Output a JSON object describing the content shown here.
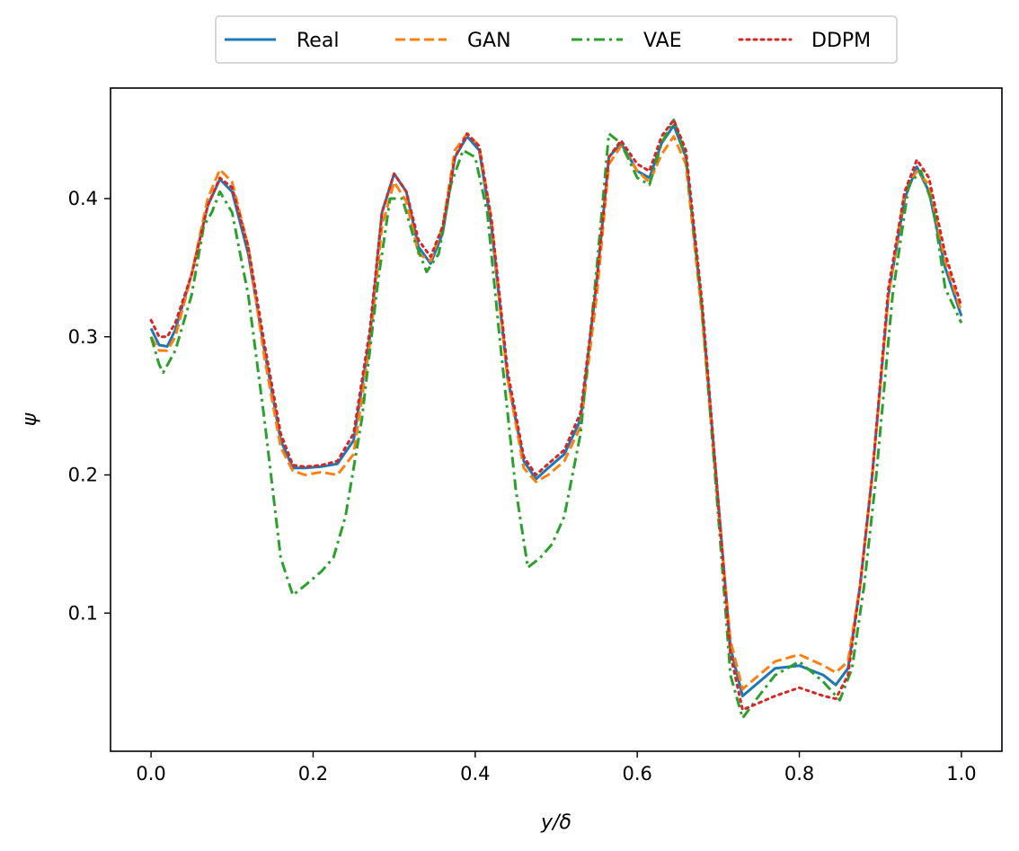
{
  "chart_data": {
    "type": "line",
    "xlabel": "y/δ",
    "ylabel": "ψ",
    "xlim": [
      -0.05,
      1.05
    ],
    "ylim": [
      0.0,
      0.48
    ],
    "xticks": [
      {
        "value": 0.0,
        "label": "0.0"
      },
      {
        "value": 0.2,
        "label": "0.2"
      },
      {
        "value": 0.4,
        "label": "0.4"
      },
      {
        "value": 0.6,
        "label": "0.6"
      },
      {
        "value": 0.8,
        "label": "0.8"
      },
      {
        "value": 1.0,
        "label": "1.0"
      }
    ],
    "yticks": [
      {
        "value": 0.1,
        "label": "0.1"
      },
      {
        "value": 0.2,
        "label": "0.2"
      },
      {
        "value": 0.3,
        "label": "0.3"
      },
      {
        "value": 0.4,
        "label": "0.4"
      }
    ],
    "legend_position": "top-center-outside",
    "grid": false,
    "series": [
      {
        "name": "Real",
        "color": "#1f77b4",
        "dash": "solid",
        "points": [
          [
            0.0,
            0.306
          ],
          [
            0.01,
            0.294
          ],
          [
            0.02,
            0.293
          ],
          [
            0.03,
            0.305
          ],
          [
            0.05,
            0.345
          ],
          [
            0.07,
            0.395
          ],
          [
            0.085,
            0.414
          ],
          [
            0.1,
            0.405
          ],
          [
            0.12,
            0.36
          ],
          [
            0.14,
            0.29
          ],
          [
            0.16,
            0.225
          ],
          [
            0.175,
            0.205
          ],
          [
            0.19,
            0.205
          ],
          [
            0.21,
            0.206
          ],
          [
            0.23,
            0.208
          ],
          [
            0.25,
            0.225
          ],
          [
            0.27,
            0.3
          ],
          [
            0.285,
            0.39
          ],
          [
            0.3,
            0.418
          ],
          [
            0.315,
            0.405
          ],
          [
            0.33,
            0.365
          ],
          [
            0.345,
            0.353
          ],
          [
            0.36,
            0.375
          ],
          [
            0.375,
            0.43
          ],
          [
            0.39,
            0.445
          ],
          [
            0.405,
            0.435
          ],
          [
            0.42,
            0.38
          ],
          [
            0.44,
            0.27
          ],
          [
            0.46,
            0.21
          ],
          [
            0.475,
            0.197
          ],
          [
            0.49,
            0.205
          ],
          [
            0.51,
            0.215
          ],
          [
            0.53,
            0.24
          ],
          [
            0.55,
            0.34
          ],
          [
            0.565,
            0.43
          ],
          [
            0.58,
            0.44
          ],
          [
            0.6,
            0.42
          ],
          [
            0.615,
            0.415
          ],
          [
            0.63,
            0.44
          ],
          [
            0.645,
            0.453
          ],
          [
            0.66,
            0.43
          ],
          [
            0.68,
            0.32
          ],
          [
            0.7,
            0.18
          ],
          [
            0.715,
            0.075
          ],
          [
            0.73,
            0.04
          ],
          [
            0.75,
            0.05
          ],
          [
            0.77,
            0.06
          ],
          [
            0.8,
            0.062
          ],
          [
            0.83,
            0.055
          ],
          [
            0.845,
            0.048
          ],
          [
            0.86,
            0.06
          ],
          [
            0.875,
            0.12
          ],
          [
            0.89,
            0.2
          ],
          [
            0.91,
            0.33
          ],
          [
            0.93,
            0.4
          ],
          [
            0.945,
            0.423
          ],
          [
            0.96,
            0.405
          ],
          [
            0.98,
            0.35
          ],
          [
            1.0,
            0.315
          ]
        ]
      },
      {
        "name": "GAN",
        "color": "#ff7f0e",
        "dash": "dashed",
        "points": [
          [
            0.0,
            0.3
          ],
          [
            0.01,
            0.29
          ],
          [
            0.02,
            0.29
          ],
          [
            0.03,
            0.3
          ],
          [
            0.05,
            0.345
          ],
          [
            0.07,
            0.4
          ],
          [
            0.085,
            0.421
          ],
          [
            0.1,
            0.412
          ],
          [
            0.12,
            0.365
          ],
          [
            0.14,
            0.285
          ],
          [
            0.16,
            0.22
          ],
          [
            0.175,
            0.203
          ],
          [
            0.19,
            0.2
          ],
          [
            0.21,
            0.202
          ],
          [
            0.23,
            0.2
          ],
          [
            0.25,
            0.215
          ],
          [
            0.27,
            0.295
          ],
          [
            0.285,
            0.38
          ],
          [
            0.3,
            0.412
          ],
          [
            0.315,
            0.398
          ],
          [
            0.33,
            0.36
          ],
          [
            0.345,
            0.355
          ],
          [
            0.36,
            0.38
          ],
          [
            0.375,
            0.435
          ],
          [
            0.39,
            0.447
          ],
          [
            0.405,
            0.438
          ],
          [
            0.42,
            0.385
          ],
          [
            0.44,
            0.27
          ],
          [
            0.46,
            0.205
          ],
          [
            0.475,
            0.195
          ],
          [
            0.49,
            0.2
          ],
          [
            0.51,
            0.21
          ],
          [
            0.53,
            0.235
          ],
          [
            0.55,
            0.33
          ],
          [
            0.565,
            0.425
          ],
          [
            0.58,
            0.438
          ],
          [
            0.6,
            0.42
          ],
          [
            0.615,
            0.412
          ],
          [
            0.63,
            0.432
          ],
          [
            0.645,
            0.445
          ],
          [
            0.66,
            0.425
          ],
          [
            0.68,
            0.315
          ],
          [
            0.7,
            0.175
          ],
          [
            0.715,
            0.08
          ],
          [
            0.73,
            0.045
          ],
          [
            0.75,
            0.055
          ],
          [
            0.77,
            0.065
          ],
          [
            0.8,
            0.07
          ],
          [
            0.83,
            0.062
          ],
          [
            0.845,
            0.057
          ],
          [
            0.86,
            0.065
          ],
          [
            0.875,
            0.12
          ],
          [
            0.89,
            0.2
          ],
          [
            0.91,
            0.33
          ],
          [
            0.93,
            0.405
          ],
          [
            0.945,
            0.42
          ],
          [
            0.96,
            0.41
          ],
          [
            0.98,
            0.355
          ],
          [
            1.0,
            0.318
          ]
        ]
      },
      {
        "name": "VAE",
        "color": "#2ca02c",
        "dash": "dashdot",
        "points": [
          [
            0.0,
            0.3
          ],
          [
            0.01,
            0.28
          ],
          [
            0.015,
            0.274
          ],
          [
            0.03,
            0.29
          ],
          [
            0.05,
            0.33
          ],
          [
            0.065,
            0.38
          ],
          [
            0.075,
            0.39
          ],
          [
            0.085,
            0.405
          ],
          [
            0.1,
            0.39
          ],
          [
            0.12,
            0.33
          ],
          [
            0.14,
            0.24
          ],
          [
            0.16,
            0.14
          ],
          [
            0.175,
            0.113
          ],
          [
            0.19,
            0.12
          ],
          [
            0.21,
            0.13
          ],
          [
            0.225,
            0.14
          ],
          [
            0.24,
            0.17
          ],
          [
            0.26,
            0.24
          ],
          [
            0.28,
            0.34
          ],
          [
            0.295,
            0.4
          ],
          [
            0.31,
            0.4
          ],
          [
            0.325,
            0.37
          ],
          [
            0.34,
            0.347
          ],
          [
            0.355,
            0.36
          ],
          [
            0.37,
            0.41
          ],
          [
            0.385,
            0.435
          ],
          [
            0.4,
            0.43
          ],
          [
            0.415,
            0.39
          ],
          [
            0.43,
            0.3
          ],
          [
            0.45,
            0.19
          ],
          [
            0.465,
            0.133
          ],
          [
            0.48,
            0.14
          ],
          [
            0.495,
            0.15
          ],
          [
            0.51,
            0.17
          ],
          [
            0.53,
            0.23
          ],
          [
            0.55,
            0.35
          ],
          [
            0.565,
            0.447
          ],
          [
            0.58,
            0.44
          ],
          [
            0.6,
            0.415
          ],
          [
            0.615,
            0.41
          ],
          [
            0.63,
            0.44
          ],
          [
            0.645,
            0.457
          ],
          [
            0.66,
            0.43
          ],
          [
            0.68,
            0.32
          ],
          [
            0.7,
            0.17
          ],
          [
            0.715,
            0.055
          ],
          [
            0.73,
            0.024
          ],
          [
            0.75,
            0.04
          ],
          [
            0.77,
            0.055
          ],
          [
            0.8,
            0.065
          ],
          [
            0.83,
            0.05
          ],
          [
            0.85,
            0.037
          ],
          [
            0.865,
            0.06
          ],
          [
            0.88,
            0.12
          ],
          [
            0.895,
            0.2
          ],
          [
            0.915,
            0.33
          ],
          [
            0.935,
            0.41
          ],
          [
            0.95,
            0.42
          ],
          [
            0.965,
            0.395
          ],
          [
            0.98,
            0.335
          ],
          [
            1.0,
            0.31
          ]
        ]
      },
      {
        "name": "DDPM",
        "color": "#d62728",
        "dash": "dotted",
        "points": [
          [
            0.0,
            0.312
          ],
          [
            0.01,
            0.3
          ],
          [
            0.02,
            0.3
          ],
          [
            0.03,
            0.31
          ],
          [
            0.05,
            0.345
          ],
          [
            0.07,
            0.395
          ],
          [
            0.085,
            0.415
          ],
          [
            0.1,
            0.408
          ],
          [
            0.12,
            0.365
          ],
          [
            0.14,
            0.295
          ],
          [
            0.16,
            0.23
          ],
          [
            0.175,
            0.207
          ],
          [
            0.19,
            0.206
          ],
          [
            0.21,
            0.207
          ],
          [
            0.23,
            0.21
          ],
          [
            0.25,
            0.23
          ],
          [
            0.27,
            0.305
          ],
          [
            0.285,
            0.39
          ],
          [
            0.3,
            0.418
          ],
          [
            0.315,
            0.405
          ],
          [
            0.33,
            0.37
          ],
          [
            0.345,
            0.358
          ],
          [
            0.36,
            0.38
          ],
          [
            0.375,
            0.43
          ],
          [
            0.39,
            0.447
          ],
          [
            0.405,
            0.438
          ],
          [
            0.42,
            0.385
          ],
          [
            0.44,
            0.275
          ],
          [
            0.46,
            0.213
          ],
          [
            0.475,
            0.2
          ],
          [
            0.49,
            0.208
          ],
          [
            0.51,
            0.218
          ],
          [
            0.53,
            0.245
          ],
          [
            0.55,
            0.34
          ],
          [
            0.565,
            0.43
          ],
          [
            0.58,
            0.442
          ],
          [
            0.6,
            0.425
          ],
          [
            0.615,
            0.42
          ],
          [
            0.63,
            0.445
          ],
          [
            0.645,
            0.457
          ],
          [
            0.66,
            0.435
          ],
          [
            0.68,
            0.325
          ],
          [
            0.7,
            0.18
          ],
          [
            0.715,
            0.07
          ],
          [
            0.73,
            0.03
          ],
          [
            0.75,
            0.035
          ],
          [
            0.77,
            0.04
          ],
          [
            0.8,
            0.046
          ],
          [
            0.83,
            0.04
          ],
          [
            0.845,
            0.038
          ],
          [
            0.86,
            0.055
          ],
          [
            0.875,
            0.12
          ],
          [
            0.89,
            0.2
          ],
          [
            0.91,
            0.335
          ],
          [
            0.93,
            0.405
          ],
          [
            0.945,
            0.428
          ],
          [
            0.96,
            0.415
          ],
          [
            0.98,
            0.36
          ],
          [
            1.0,
            0.322
          ]
        ]
      }
    ]
  }
}
